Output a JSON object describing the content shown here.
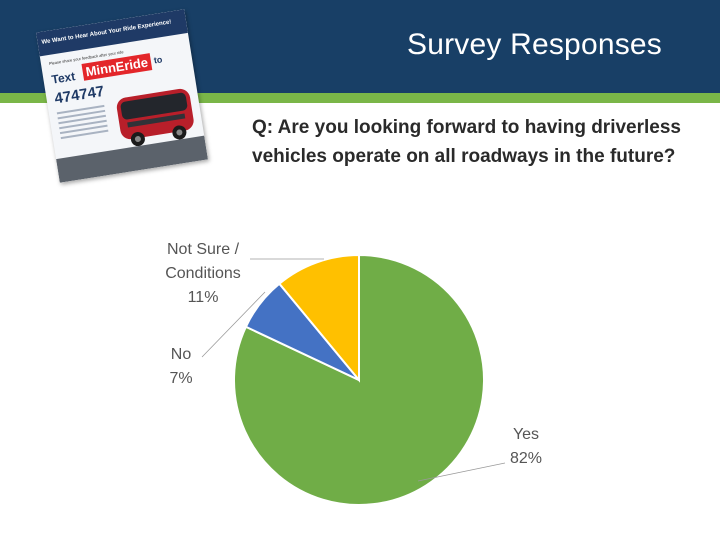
{
  "title": "Survey Responses",
  "question": "Q:  Are you looking forward to having driverless vehicles operate on all roadways in the future?",
  "poster": {
    "headline": "We Want to Hear About Your Ride Experience!",
    "subhead": "Please share your feedback after your ride",
    "text_prefix": "Text",
    "brand": "MinnEride",
    "text_suffix": "to",
    "number": "474747"
  },
  "colors": {
    "header": "#183f66",
    "stripe": "#7ab648",
    "yes": "#70ad47",
    "no": "#4472c4",
    "not_sure": "#ffc000"
  },
  "chart_data": {
    "type": "pie",
    "title": "",
    "categories": [
      "Yes",
      "No",
      "Not Sure / Conditions"
    ],
    "values": [
      82,
      7,
      11
    ],
    "labels": [
      {
        "lines": [
          "Yes",
          "82%"
        ]
      },
      {
        "lines": [
          "No",
          "7%"
        ]
      },
      {
        "lines": [
          "Not Sure /",
          "Conditions",
          "11%"
        ]
      }
    ],
    "start_angle_deg": 0,
    "direction": "clockwise"
  }
}
